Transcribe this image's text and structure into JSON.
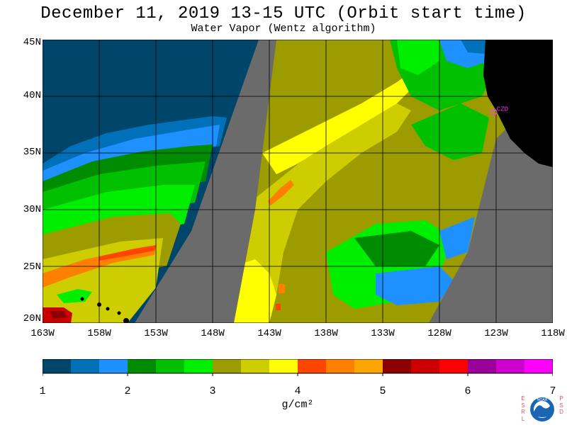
{
  "header": {
    "title": "December 11, 2019  13-15 UTC  (Orbit start time)",
    "subtitle": "Water Vapor (Wentz algorithm)"
  },
  "map": {
    "lat_labels": [
      "45N",
      "40N",
      "35N",
      "30N",
      "25N",
      "20N"
    ],
    "lon_labels": [
      "163W",
      "158W",
      "153W",
      "148W",
      "143W",
      "138W",
      "133W",
      "128W",
      "123W",
      "118W"
    ],
    "lat_range": [
      20,
      45
    ],
    "lon_range": [
      -163,
      -118
    ],
    "station": {
      "label": "CZD",
      "lat": 38.6,
      "lon": -123.2,
      "color": "#ff33ff"
    },
    "land_color": "#000000",
    "nodata_color": "#6b6b6b"
  },
  "colorbar": {
    "colors": [
      "#00456a",
      "#0070b8",
      "#1e90ff",
      "#008c00",
      "#00c000",
      "#00ee00",
      "#9c9c00",
      "#cdcd00",
      "#ffff00",
      "#ff4500",
      "#ff7f00",
      "#ffa500",
      "#8b0000",
      "#cd0000",
      "#ff0000",
      "#9b009b",
      "#cd00cd",
      "#ff00ff"
    ],
    "ticks": [
      "1",
      "2",
      "3",
      "4",
      "5",
      "6",
      "7"
    ],
    "units": "g/cm²"
  },
  "logo": {
    "left_letters": [
      "E",
      "S",
      "R",
      "L"
    ],
    "right_letters": [
      "P",
      "S",
      "D"
    ],
    "center_text": "NOAA"
  }
}
